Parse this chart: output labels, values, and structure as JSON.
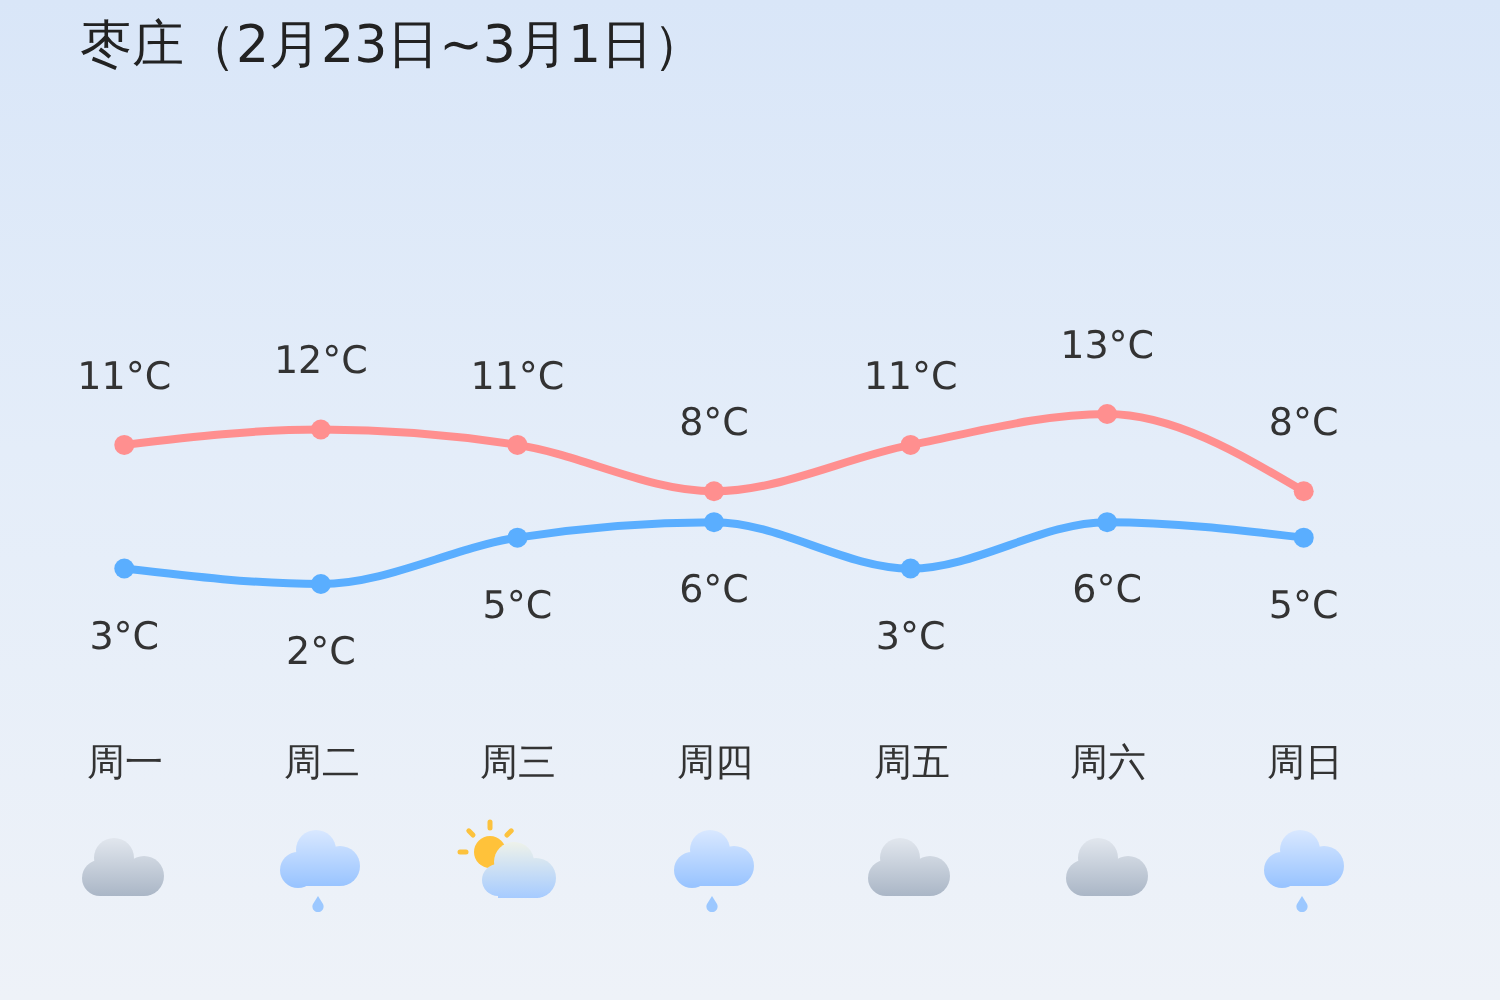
{
  "chart_data": {
    "type": "line",
    "title": "枣庄（2月23日~3月1日）",
    "categories": [
      "周一",
      "周二",
      "周三",
      "周四",
      "周五",
      "周六",
      "周日"
    ],
    "series": [
      {
        "color": "#ff8f8f",
        "values": [
          11,
          12,
          11,
          8,
          11,
          13,
          8
        ],
        "value_labels": [
          "11°C",
          "12°C",
          "11°C",
          "8°C",
          "11°C",
          "13°C",
          "8°C"
        ]
      },
      {
        "color": "#5aaeff",
        "values": [
          3,
          2,
          5,
          6,
          3,
          6,
          5
        ],
        "value_labels": [
          "3°C",
          "2°C",
          "5°C",
          "6°C",
          "3°C",
          "6°C",
          "5°C"
        ]
      }
    ],
    "tick_labels": "x",
    "marker": "circle",
    "line_style": "solid"
  }
}
